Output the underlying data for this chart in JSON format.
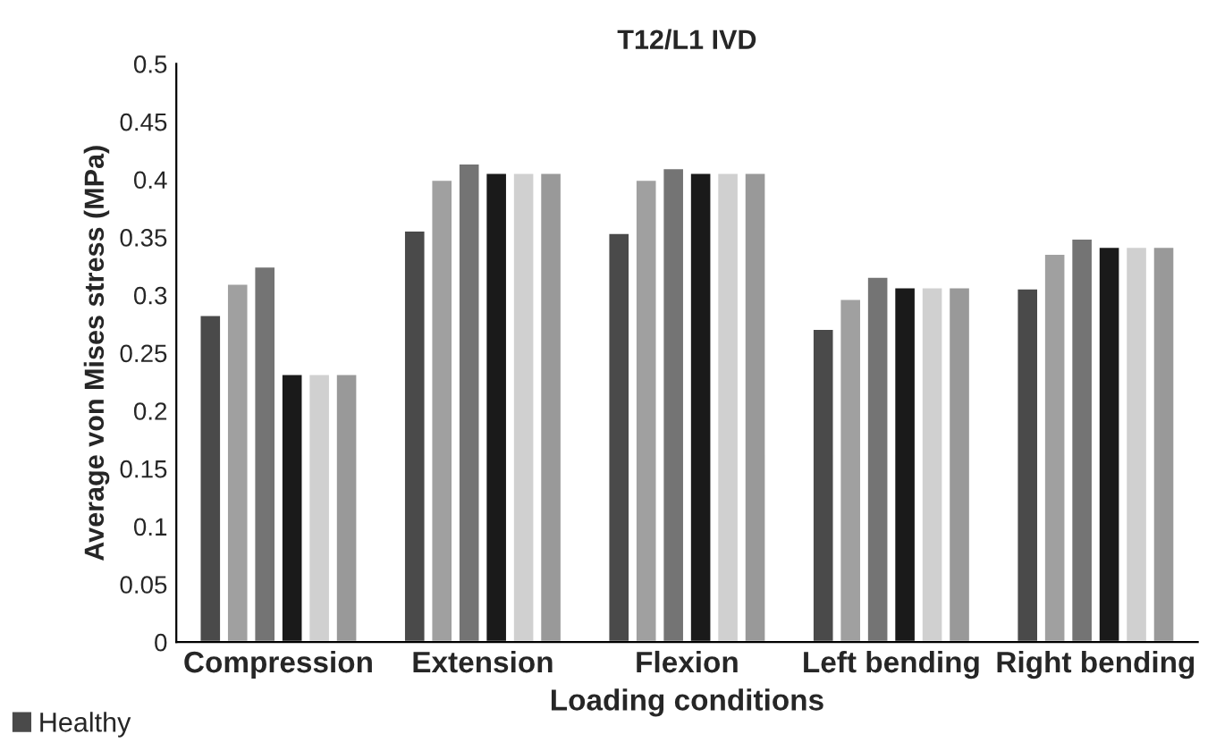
{
  "chart_data": {
    "type": "bar",
    "title": "T12/L1 IVD",
    "xlabel": "Loading conditions",
    "ylabel": "Average von Mises stress (MPa)",
    "categories": [
      "Compression",
      "Extension",
      "Flexion",
      "Left bending",
      "Right bending"
    ],
    "series": [
      {
        "name": "Healthy",
        "color": "#4a4a4a",
        "values": [
          0.283,
          0.356,
          0.354,
          0.271,
          0.306
        ]
      },
      {
        "color": "#a0a0a0",
        "values": [
          0.31,
          0.4,
          0.4,
          0.297,
          0.336
        ]
      },
      {
        "color": "#747474",
        "values": [
          0.325,
          0.414,
          0.41,
          0.316,
          0.349
        ]
      },
      {
        "color": "#1a1a1a",
        "values": [
          0.232,
          0.406,
          0.406,
          0.307,
          0.342
        ]
      },
      {
        "color": "#d0d0d0",
        "values": [
          0.232,
          0.406,
          0.406,
          0.307,
          0.342
        ]
      },
      {
        "color": "#999999",
        "values": [
          0.232,
          0.406,
          0.406,
          0.307,
          0.342
        ]
      }
    ],
    "ylim": [
      0,
      0.5
    ],
    "yticks": [
      0,
      0.05,
      0.1,
      0.15,
      0.2,
      0.25,
      0.3,
      0.35,
      0.4,
      0.45,
      0.5
    ],
    "grid": false,
    "legend": "bottom left"
  }
}
